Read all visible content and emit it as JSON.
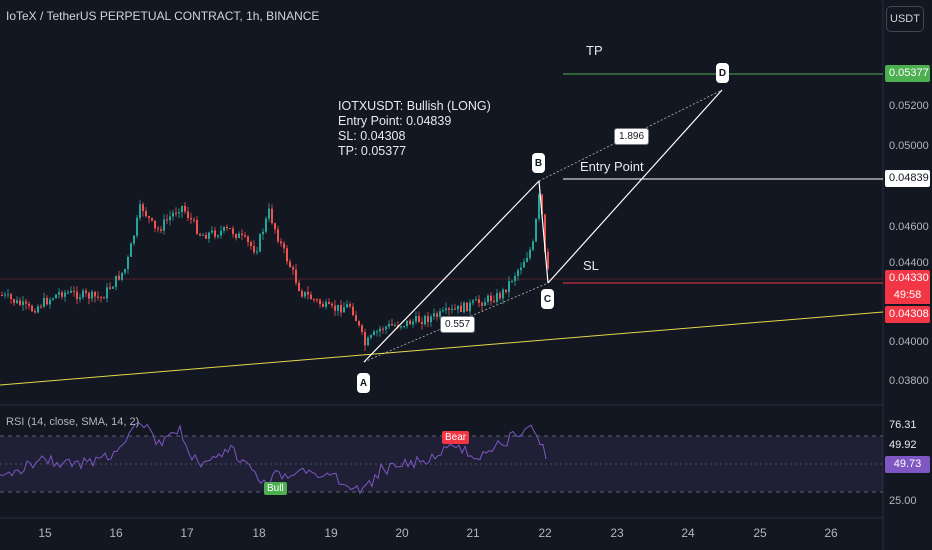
{
  "header": {
    "title": "IoTeX / TetherUS PERPETUAL CONTRACT, 1h, BINANCE",
    "currency_button": "USDT"
  },
  "annotation": {
    "line1": "IOTXUSDT: Bullish (LONG)",
    "line2": "Entry Point: 0.04839",
    "line3": "SL: 0.04308",
    "line4": "TP: 0.05377"
  },
  "levels": {
    "tp_label": "TP",
    "entry_label": "Entry Point",
    "sl_label": "SL"
  },
  "pattern": {
    "points": [
      "A",
      "B",
      "C",
      "D"
    ],
    "ratio_ac": "0.557",
    "ratio_bd": "1.896"
  },
  "price_axis": {
    "ticks": [
      "0.05200",
      "0.05000",
      "0.04600",
      "0.04400",
      "0.04000",
      "0.03800"
    ],
    "tp_tag": "0.05377",
    "entry_tag": "0.04839",
    "last_price_tag": "0.04330",
    "countdown_tag": "49:58",
    "sl_tag": "0.04308"
  },
  "time_axis": {
    "ticks": [
      "15",
      "16",
      "17",
      "18",
      "19",
      "20",
      "21",
      "22",
      "23",
      "24",
      "25",
      "26"
    ]
  },
  "rsi": {
    "title": "RSI (14, close, SMA, 14, 2)",
    "ticks": [
      "76.31",
      "49.92",
      "25.00"
    ],
    "current_tag": "49.73",
    "bull_label": "Bull",
    "bear_label": "Bear"
  },
  "colors": {
    "background": "#131722",
    "up_candle": "#26a69a",
    "down_candle": "#ef5350",
    "tp_line": "#4caf50",
    "sl_line": "#f23645",
    "entry_line": "#ffffff",
    "trend_line": "#e5d74c",
    "rsi_line": "#7e57c2"
  },
  "chart_data": {
    "type": "candlestick",
    "x": [
      "15",
      "16",
      "17",
      "18",
      "19",
      "20",
      "21",
      "22",
      "23",
      "24",
      "25",
      "26"
    ],
    "ylim": [
      0.0375,
      0.0545
    ],
    "pattern_prices": {
      "A": 0.039,
      "B": 0.0484,
      "C": 0.0431,
      "D": 0.053
    },
    "levels": {
      "tp": 0.05377,
      "entry": 0.04839,
      "sl": 0.04308,
      "last": 0.0433
    },
    "rsi": {
      "last": 49.73,
      "upper": 76.31,
      "mid": 49.92,
      "lower": 25.0
    }
  }
}
